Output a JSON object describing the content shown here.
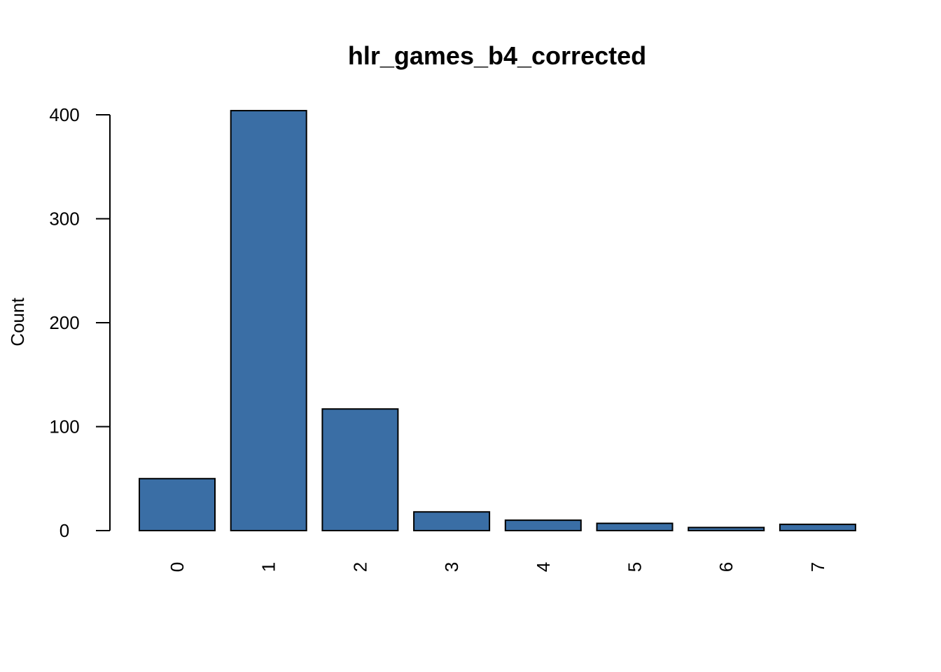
{
  "chart_data": {
    "type": "bar",
    "title": "hlr_games_b4_corrected",
    "xlabel": "",
    "ylabel": "Count",
    "categories": [
      "0",
      "1",
      "2",
      "3",
      "4",
      "5",
      "6",
      "7"
    ],
    "values": [
      50,
      404,
      117,
      18,
      10,
      7,
      3,
      6
    ],
    "ylim": [
      0,
      400
    ],
    "yticks": [
      "0",
      "100",
      "200",
      "300",
      "400"
    ],
    "grid": false,
    "legend": "none",
    "bar_color": "#3a6ea5",
    "bar_border_color": "#000000"
  }
}
